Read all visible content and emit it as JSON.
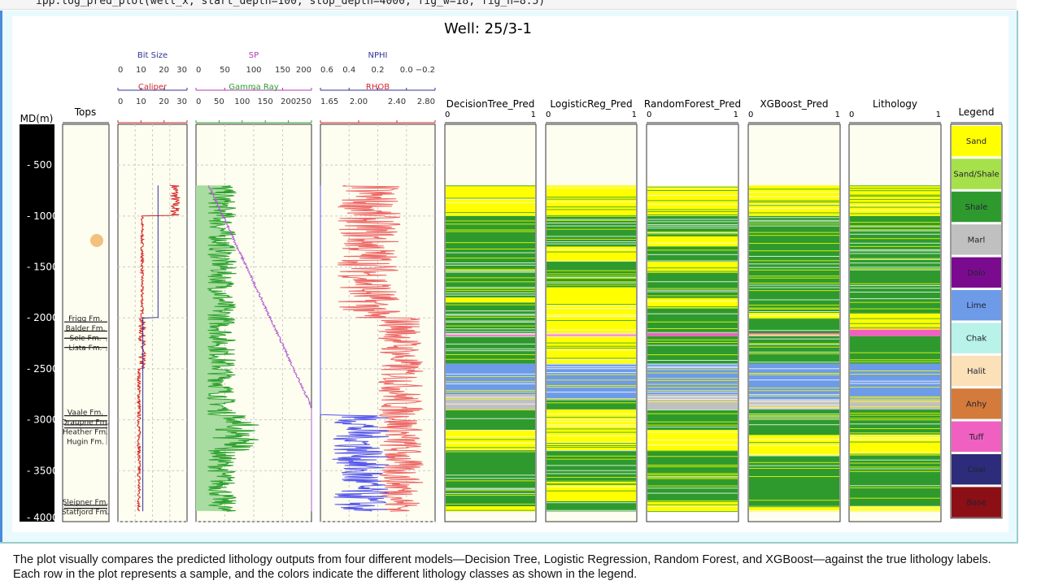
{
  "code_cell": {
    "text": "ipp.log_pred_plot(well_x, start_depth=100, stop_depth=4000, fig_w=18, fig_h=8.5)"
  },
  "caption": "The plot visually compares the predicted lithology outputs from four different models—Decision Tree, Logistic Regression, Random Forest, and XGBoost—against the true lithology labels. Each row in the plot represents a sample, and the colors indicate the different lithology classes as shown in the legend.",
  "chart_data": {
    "type": "well-log",
    "title": "Well: 25/3-1",
    "depth_axis": {
      "label": "MD(m)",
      "range": [
        100,
        4000
      ],
      "ticks": [
        500,
        1000,
        1500,
        2000,
        2500,
        3000,
        3500,
        4000
      ],
      "tick_labels": [
        "500",
        "1000",
        "1500",
        "2000",
        "2500",
        "3000",
        "3500",
        "4000"
      ]
    },
    "tops": {
      "title": "Tops",
      "items": [
        {
          "name": "Frigg Fm.",
          "depth": 2040
        },
        {
          "name": "Balder Fm.",
          "depth": 2130
        },
        {
          "name": "Sele Fm.",
          "depth": 2200
        },
        {
          "name": "Lista Fm.",
          "depth": 2290
        },
        {
          "name": "Vaale Fm.",
          "depth": 2960
        },
        {
          "name": "Draupne Fm.",
          "depth": 3010
        },
        {
          "name": "Heather Fm.",
          "depth": 3050
        },
        {
          "name": "Hugin Fm.",
          "depth": 3080
        },
        {
          "name": "Sleipner Fm.",
          "depth": 3840
        },
        {
          "name": "Statfjord Fm.",
          "depth": 3870
        }
      ]
    },
    "curve_tracks": [
      {
        "top": {
          "name": "Bit Size",
          "color": "#333399",
          "range": [
            0,
            30
          ],
          "ticks": [
            "0",
            "10",
            "20",
            "30"
          ]
        },
        "bottom": {
          "name": "Caliper",
          "color": "#d62728",
          "range": [
            0,
            30
          ],
          "ticks": [
            "0",
            "10",
            "20",
            "30"
          ]
        }
      },
      {
        "top": {
          "name": "SP",
          "color": "#b03bb0",
          "range": [
            0,
            200
          ],
          "ticks": [
            "0",
            "50",
            "100",
            "150",
            "200"
          ]
        },
        "bottom": {
          "name": "Gamma Ray",
          "color": "#2ca02c",
          "range": [
            0,
            250
          ],
          "ticks": [
            "0",
            "50",
            "100",
            "150",
            "200",
            "250"
          ]
        }
      },
      {
        "top": {
          "name": "NPHI",
          "color": "#333399",
          "range": [
            0.6,
            -0.2
          ],
          "ticks": [
            "0.6",
            "0.4",
            "0.2",
            "0.0",
            "−0.2"
          ]
        },
        "bottom": {
          "name": "RHOB",
          "color": "#d62728",
          "range": [
            1.65,
            3.0
          ],
          "ticks": [
            "1.65",
            "2.00",
            "2.40",
            "2.80"
          ]
        }
      }
    ],
    "prediction_tracks": [
      {
        "name": "DecisionTree_Pred",
        "xlim_labels": [
          "0",
          "1"
        ],
        "intervals": [
          [
            700,
            1000,
            "Sand"
          ],
          [
            1000,
            1800,
            "Shale"
          ],
          [
            1800,
            1850,
            "Sand"
          ],
          [
            1850,
            2150,
            "Shale"
          ],
          [
            2150,
            2180,
            "Tuff"
          ],
          [
            2180,
            2450,
            "Shale"
          ],
          [
            2450,
            2750,
            "Lime"
          ],
          [
            2750,
            2900,
            "Marl"
          ],
          [
            2900,
            3100,
            "Shale"
          ],
          [
            3100,
            3300,
            "Sand"
          ],
          [
            3300,
            3850,
            "Shale"
          ],
          [
            3850,
            3900,
            "Sand"
          ]
        ]
      },
      {
        "name": "LogisticReg_Pred",
        "xlim_labels": [
          "0",
          "1"
        ],
        "intervals": [
          [
            700,
            1000,
            "Sand"
          ],
          [
            1000,
            1300,
            "Shale"
          ],
          [
            1300,
            1450,
            "Sand"
          ],
          [
            1450,
            1700,
            "Shale"
          ],
          [
            1700,
            2150,
            "Sand"
          ],
          [
            2150,
            2180,
            "Tuff"
          ],
          [
            2180,
            2450,
            "Sand"
          ],
          [
            2450,
            2800,
            "Lime"
          ],
          [
            2800,
            2900,
            "Shale"
          ],
          [
            2900,
            3300,
            "Sand"
          ],
          [
            3300,
            3600,
            "Shale"
          ],
          [
            3600,
            3800,
            "Sand"
          ],
          [
            3800,
            3900,
            "Shale"
          ]
        ]
      },
      {
        "name": "RandomForest_Pred",
        "xlim_labels": [
          "0",
          "1"
        ],
        "intervals": [
          [
            700,
            1000,
            "Sand"
          ],
          [
            1000,
            1200,
            "Shale"
          ],
          [
            1200,
            1300,
            "Sand"
          ],
          [
            1300,
            1450,
            "Shale"
          ],
          [
            1450,
            1550,
            "Sand"
          ],
          [
            1550,
            1800,
            "Shale"
          ],
          [
            1800,
            1900,
            "Sand"
          ],
          [
            1900,
            2150,
            "Shale"
          ],
          [
            2150,
            2180,
            "Tuff"
          ],
          [
            2180,
            2450,
            "Shale"
          ],
          [
            2450,
            2750,
            "Lime"
          ],
          [
            2750,
            2900,
            "Marl"
          ],
          [
            2900,
            3100,
            "Shale"
          ],
          [
            3100,
            3300,
            "Sand"
          ],
          [
            3300,
            3800,
            "Shale"
          ],
          [
            3800,
            3900,
            "Sand"
          ]
        ]
      },
      {
        "name": "XGBoost_Pred",
        "xlim_labels": [
          "0",
          "1"
        ],
        "intervals": [
          [
            700,
            1000,
            "Sand"
          ],
          [
            1000,
            1950,
            "Shale"
          ],
          [
            1950,
            2000,
            "Sand"
          ],
          [
            2000,
            2150,
            "Shale"
          ],
          [
            2150,
            2180,
            "Tuff"
          ],
          [
            2180,
            2450,
            "Shale"
          ],
          [
            2450,
            2800,
            "Lime"
          ],
          [
            2800,
            2900,
            "Marl"
          ],
          [
            2900,
            3150,
            "Shale"
          ],
          [
            3150,
            3350,
            "Sand"
          ],
          [
            3350,
            3850,
            "Shale"
          ],
          [
            3850,
            3900,
            "Sand"
          ]
        ]
      },
      {
        "name": "Lithology",
        "xlim_labels": [
          "0",
          "1"
        ],
        "intervals": [
          [
            700,
            1000,
            "Sand"
          ],
          [
            1000,
            1950,
            "Shale"
          ],
          [
            1950,
            2100,
            "Sand"
          ],
          [
            2100,
            2180,
            "Tuff"
          ],
          [
            2180,
            2450,
            "Shale"
          ],
          [
            2450,
            2800,
            "Lime"
          ],
          [
            2800,
            2900,
            "Marl"
          ],
          [
            2900,
            3150,
            "Shale"
          ],
          [
            3150,
            3350,
            "Sand"
          ],
          [
            3350,
            3850,
            "Shale"
          ],
          [
            3850,
            3900,
            "Sand"
          ]
        ]
      }
    ],
    "legend": {
      "title": "Legend",
      "items": [
        {
          "name": "Sand",
          "color": "#ffff00"
        },
        {
          "name": "Sand/Shale",
          "color": "#a6e04a"
        },
        {
          "name": "Shale",
          "color": "#2e9a2e"
        },
        {
          "name": "Marl",
          "color": "#c0c0c0"
        },
        {
          "name": "Dolo",
          "color": "#7b0b8e"
        },
        {
          "name": "Lime",
          "color": "#6d9be8"
        },
        {
          "name": "Chak",
          "color": "#b8f2e8"
        },
        {
          "name": "Halit",
          "color": "#fbe0b8"
        },
        {
          "name": "Anhy",
          "color": "#d47a3a"
        },
        {
          "name": "Tuff",
          "color": "#f060c0"
        },
        {
          "name": "Coal",
          "color": "#2c2c7a"
        },
        {
          "name": "Base",
          "color": "#8b0f14"
        }
      ]
    }
  }
}
